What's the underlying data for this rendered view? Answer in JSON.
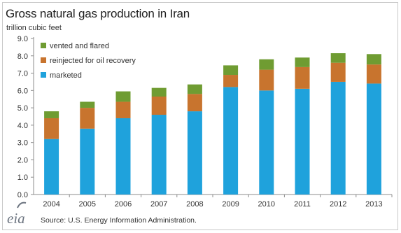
{
  "header": {
    "title": "Gross natural gas production in Iran",
    "units": "trillion cubic feet"
  },
  "footer": {
    "logo_text": "eia",
    "source": "Source: U.S. Energy Information Administration."
  },
  "colors": {
    "marketed": "#1fa2dc",
    "reinjected": "#c8742e",
    "vented": "#6f9c32",
    "axis": "#8c8c8c",
    "gridline": "#bdbdbd"
  },
  "chart_data": {
    "type": "bar",
    "stacked": true,
    "title": "Gross natural gas production in Iran",
    "ylabel": "trillion cubic feet",
    "xlabel": "",
    "ylim": [
      0,
      9
    ],
    "yticks": [
      "0.0",
      "1.0",
      "2.0",
      "3.0",
      "4.0",
      "5.0",
      "6.0",
      "7.0",
      "8.0",
      "9.0"
    ],
    "grid": false,
    "legend_position": "top-left",
    "categories": [
      "2004",
      "2005",
      "2006",
      "2007",
      "2008",
      "2009",
      "2010",
      "2011",
      "2012",
      "2013"
    ],
    "series": [
      {
        "name": "marketed",
        "color": "#1fa2dc",
        "values": [
          3.2,
          3.8,
          4.4,
          4.6,
          4.8,
          6.2,
          6.0,
          6.1,
          6.5,
          6.4
        ]
      },
      {
        "name": "reinjected for oil recovery",
        "color": "#c8742e",
        "values": [
          1.2,
          1.2,
          0.95,
          1.05,
          1.0,
          0.7,
          1.2,
          1.25,
          1.1,
          1.1
        ]
      },
      {
        "name": "vented and flared",
        "color": "#6f9c32",
        "values": [
          0.4,
          0.35,
          0.6,
          0.5,
          0.55,
          0.55,
          0.6,
          0.55,
          0.55,
          0.6
        ]
      }
    ],
    "legend_order": [
      "vented and flared",
      "reinjected for oil recovery",
      "marketed"
    ]
  }
}
